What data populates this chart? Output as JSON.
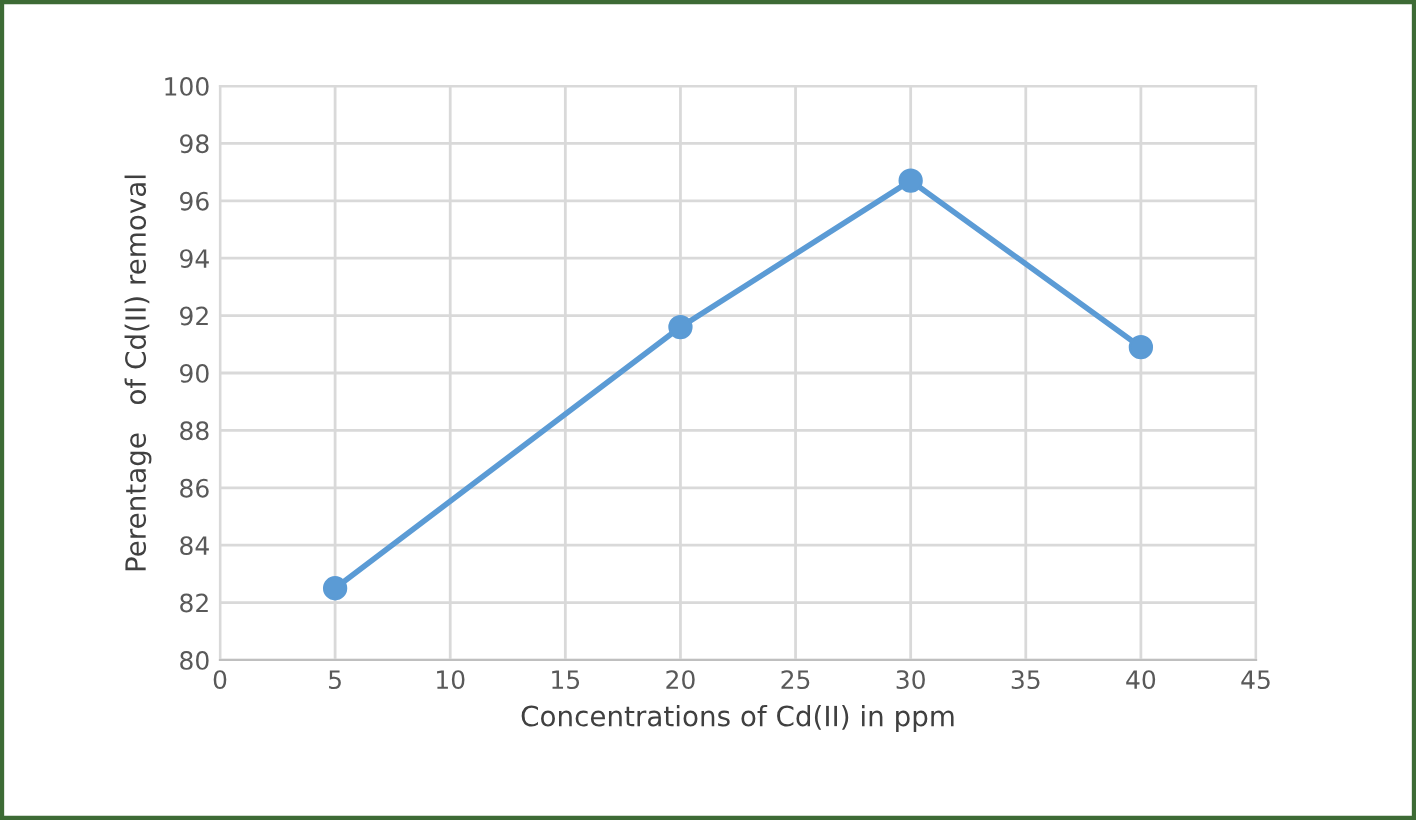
{
  "chart_data": {
    "type": "line",
    "xlabel": "Concentrations of Cd(II) in ppm",
    "ylabel": "Perentage   of Cd(II) removal",
    "x": [
      5,
      20,
      30,
      40
    ],
    "series": [
      {
        "color": "#5b9bd5",
        "values": [
          82.5,
          91.6,
          96.7,
          90.9
        ]
      }
    ],
    "xlim": [
      0,
      45
    ],
    "xticks": [
      0,
      5,
      10,
      15,
      20,
      25,
      30,
      35,
      40,
      45
    ],
    "ylim": [
      80,
      100
    ],
    "yticks": [
      80,
      82,
      84,
      86,
      88,
      90,
      92,
      94,
      96,
      98,
      100
    ],
    "grid": true,
    "marker": "circle",
    "line_style": "solid"
  }
}
